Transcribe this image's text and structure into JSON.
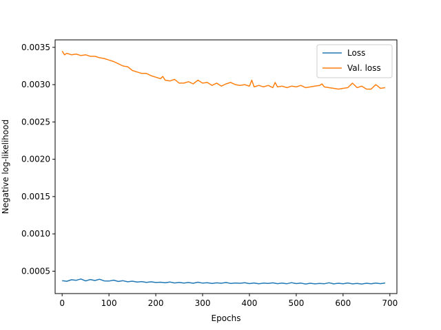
{
  "chart_data": {
    "type": "line",
    "title": "",
    "xlabel": "Epochs",
    "ylabel": "Negative log-likelihood",
    "xlim": [
      -15,
      715
    ],
    "ylim": [
      0.0002,
      0.0036
    ],
    "xticks": [
      0,
      100,
      200,
      300,
      400,
      500,
      600,
      700
    ],
    "xtick_labels": [
      "0",
      "100",
      "200",
      "300",
      "400",
      "500",
      "600",
      "700"
    ],
    "yticks": [
      0.0005,
      0.001,
      0.0015,
      0.002,
      0.0025,
      0.003,
      0.0035
    ],
    "ytick_labels": [
      "0.0005",
      "0.0010",
      "0.0015",
      "0.0020",
      "0.0025",
      "0.0030",
      "0.0035"
    ],
    "grid": false,
    "legend_position": "top-right",
    "series": [
      {
        "name": "Loss",
        "color": "#1f77b4",
        "x": [
          0,
          10,
          20,
          30,
          40,
          50,
          60,
          70,
          80,
          90,
          100,
          110,
          120,
          130,
          140,
          150,
          160,
          170,
          180,
          190,
          200,
          210,
          220,
          230,
          240,
          250,
          260,
          270,
          280,
          290,
          300,
          310,
          320,
          330,
          340,
          350,
          360,
          370,
          380,
          390,
          400,
          410,
          420,
          430,
          440,
          450,
          460,
          470,
          480,
          490,
          500,
          510,
          520,
          530,
          540,
          550,
          560,
          570,
          580,
          590,
          600,
          610,
          620,
          630,
          640,
          650,
          660,
          670,
          680,
          690
        ],
        "y": [
          0.000372,
          0.000365,
          0.000385,
          0.000378,
          0.000395,
          0.00037,
          0.000388,
          0.000375,
          0.000392,
          0.00037,
          0.000368,
          0.00038,
          0.000362,
          0.000372,
          0.000358,
          0.000366,
          0.000355,
          0.00036,
          0.00035,
          0.000358,
          0.000348,
          0.000352,
          0.000345,
          0.000355,
          0.000342,
          0.00035,
          0.00034,
          0.000348,
          0.000338,
          0.000352,
          0.00034,
          0.000346,
          0.000336,
          0.000344,
          0.000338,
          0.000348,
          0.000335,
          0.000342,
          0.000338,
          0.000345,
          0.000334,
          0.000342,
          0.000332,
          0.00034,
          0.000335,
          0.000344,
          0.000333,
          0.00034,
          0.000332,
          0.000346,
          0.000334,
          0.00034,
          0.000328,
          0.000338,
          0.00033,
          0.000336,
          0.000332,
          0.000345,
          0.00033,
          0.000338,
          0.000332,
          0.000342,
          0.00033,
          0.000336,
          0.000328,
          0.000338,
          0.000332,
          0.00034,
          0.000333,
          0.000342
        ]
      },
      {
        "name": "Val. loss",
        "color": "#ff7f0e",
        "x": [
          0,
          5,
          10,
          20,
          30,
          40,
          50,
          60,
          70,
          80,
          90,
          100,
          110,
          120,
          130,
          140,
          150,
          160,
          170,
          180,
          190,
          200,
          210,
          215,
          220,
          230,
          240,
          250,
          260,
          270,
          280,
          290,
          300,
          310,
          320,
          330,
          340,
          350,
          360,
          370,
          380,
          390,
          400,
          405,
          410,
          420,
          430,
          440,
          450,
          455,
          460,
          470,
          480,
          490,
          500,
          510,
          520,
          530,
          540,
          550,
          555,
          560,
          570,
          580,
          590,
          600,
          610,
          620,
          630,
          640,
          650,
          660,
          670,
          680,
          690
        ],
        "y": [
          0.00345,
          0.0034,
          0.00342,
          0.0034,
          0.00341,
          0.00339,
          0.0034,
          0.00338,
          0.00338,
          0.00336,
          0.00335,
          0.00333,
          0.00331,
          0.00328,
          0.00325,
          0.00324,
          0.00319,
          0.00317,
          0.00315,
          0.00315,
          0.00312,
          0.0031,
          0.00308,
          0.00311,
          0.00306,
          0.00305,
          0.00307,
          0.00302,
          0.00302,
          0.00304,
          0.00301,
          0.00306,
          0.00302,
          0.00303,
          0.00299,
          0.00302,
          0.00298,
          0.00301,
          0.00303,
          0.003,
          0.00299,
          0.003,
          0.00298,
          0.00306,
          0.00297,
          0.00299,
          0.00297,
          0.00299,
          0.00296,
          0.00303,
          0.00297,
          0.00298,
          0.00296,
          0.00298,
          0.00297,
          0.00299,
          0.00296,
          0.00297,
          0.00298,
          0.00299,
          0.00301,
          0.00297,
          0.00296,
          0.00295,
          0.00294,
          0.00295,
          0.00296,
          0.00302,
          0.00296,
          0.00298,
          0.00294,
          0.00294,
          0.003,
          0.00295,
          0.00296
        ]
      }
    ]
  }
}
